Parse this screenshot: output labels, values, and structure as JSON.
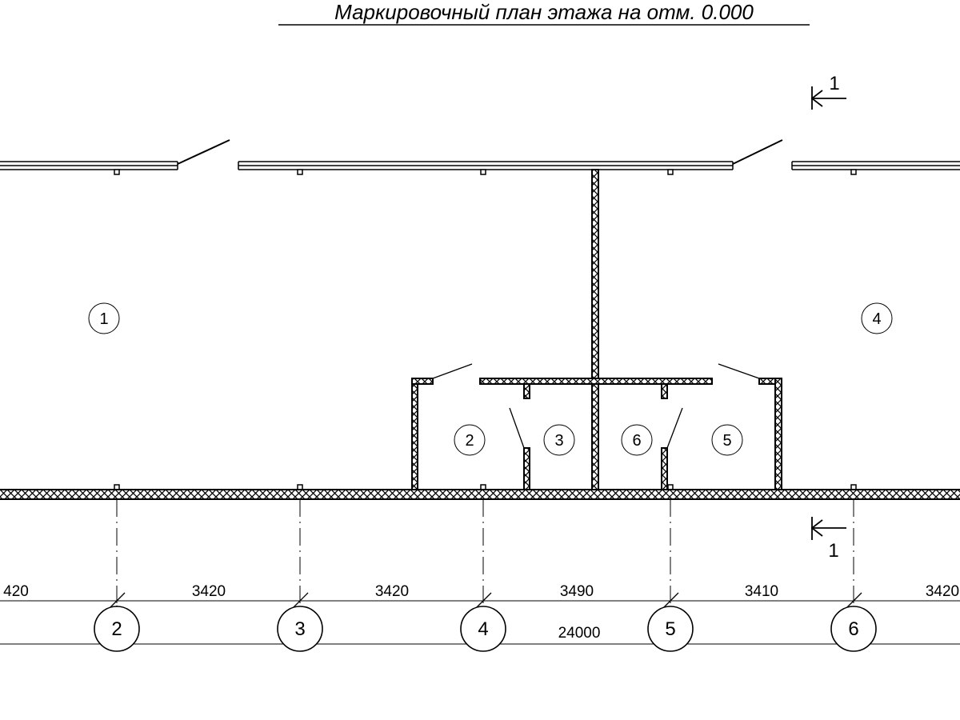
{
  "title": "Маркировочный план этажа на отм. 0.000",
  "section_mark": {
    "top_label": "1",
    "bottom_label": "1"
  },
  "rooms": [
    "1",
    "4",
    "2",
    "3",
    "6",
    "5"
  ],
  "dimensions": [
    "420",
    "3420",
    "3420",
    "3490",
    "3410",
    "3420"
  ],
  "total_dimension": "24000",
  "axes": [
    "2",
    "3",
    "4",
    "5",
    "6"
  ],
  "colors": {
    "line": "#000000",
    "background": "#ffffff"
  }
}
